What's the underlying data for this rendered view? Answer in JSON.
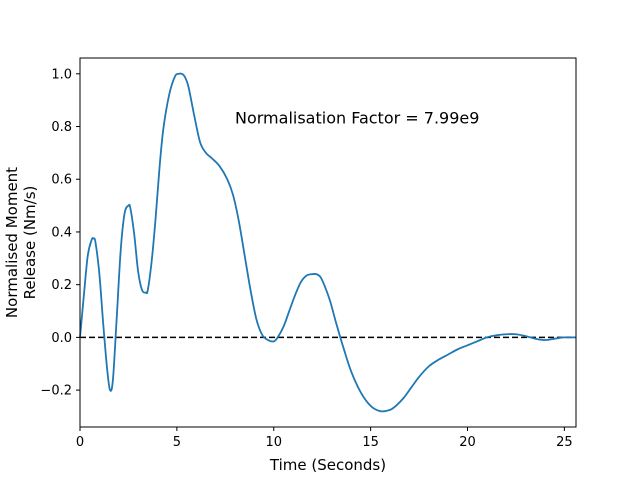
{
  "chart_data": {
    "type": "line",
    "title": "",
    "xlabel": "Time (Seconds)",
    "ylabel_lines": [
      "Normalised Moment",
      "Release (Nm/s)"
    ],
    "xlim": [
      0,
      25.6
    ],
    "ylim": [
      -0.34,
      1.06
    ],
    "x_ticks": [
      0,
      5,
      10,
      15,
      20,
      25
    ],
    "x_tick_labels": [
      "0",
      "5",
      "10",
      "15",
      "20",
      "25"
    ],
    "y_ticks": [
      -0.2,
      0.0,
      0.2,
      0.4,
      0.6,
      0.8,
      1.0
    ],
    "y_tick_labels": [
      "−0.2",
      "0.0",
      "0.2",
      "0.4",
      "0.6",
      "0.8",
      "1.0"
    ],
    "grid": false,
    "legend": "none",
    "annotation": {
      "text": "Normalisation Factor = 7.99e9",
      "x": 8.0,
      "y": 0.8
    },
    "reference_line": {
      "y": 0,
      "style": "dashed",
      "color": "#000000"
    },
    "series": [
      {
        "color": "#1f77b4",
        "x": [
          0,
          0.2,
          0.4,
          0.6,
          0.7,
          0.8,
          1.0,
          1.2,
          1.4,
          1.55,
          1.7,
          1.9,
          2.1,
          2.3,
          2.5,
          2.6,
          2.8,
          3.0,
          3.2,
          3.4,
          3.5,
          3.7,
          3.9,
          4.1,
          4.3,
          4.6,
          4.9,
          5.1,
          5.25,
          5.4,
          5.6,
          5.9,
          6.2,
          6.5,
          6.8,
          7.2,
          7.6,
          7.9,
          8.2,
          8.5,
          8.8,
          9.1,
          9.4,
          9.7,
          10.0,
          10.2,
          10.5,
          10.8,
          11.1,
          11.4,
          11.7,
          12.0,
          12.2,
          12.4,
          12.6,
          12.9,
          13.2,
          13.6,
          14.0,
          14.5,
          15.0,
          15.5,
          16.0,
          16.3,
          16.7,
          17.1,
          17.5,
          18.0,
          18.5,
          19.0,
          19.5,
          20.0,
          20.5,
          21.0,
          21.5,
          22.0,
          22.5,
          23.0,
          23.5,
          24.0,
          24.5,
          25.0,
          25.6
        ],
        "y": [
          0.0,
          0.16,
          0.31,
          0.37,
          0.375,
          0.36,
          0.24,
          0.05,
          -0.12,
          -0.2,
          -0.16,
          0.08,
          0.33,
          0.47,
          0.5,
          0.49,
          0.39,
          0.25,
          0.18,
          0.17,
          0.18,
          0.29,
          0.45,
          0.64,
          0.79,
          0.92,
          0.99,
          1.0,
          1.0,
          0.99,
          0.95,
          0.84,
          0.74,
          0.7,
          0.68,
          0.65,
          0.6,
          0.54,
          0.44,
          0.31,
          0.18,
          0.07,
          0.01,
          -0.01,
          -0.015,
          0.0,
          0.04,
          0.1,
          0.16,
          0.21,
          0.235,
          0.24,
          0.24,
          0.23,
          0.2,
          0.14,
          0.06,
          -0.04,
          -0.13,
          -0.21,
          -0.26,
          -0.28,
          -0.275,
          -0.26,
          -0.23,
          -0.19,
          -0.15,
          -0.11,
          -0.085,
          -0.065,
          -0.045,
          -0.03,
          -0.015,
          0.0,
          0.008,
          0.012,
          0.012,
          0.005,
          -0.005,
          -0.01,
          -0.005,
          0.0,
          0.0
        ]
      }
    ]
  }
}
